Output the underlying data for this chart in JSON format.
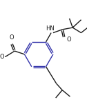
{
  "bg_color": "#ffffff",
  "line_color": "#1a1a1a",
  "ring_color": "#3333aa",
  "lw": 1.0,
  "figsize": [
    1.26,
    1.51
  ],
  "dpi": 100,
  "xlim": [
    0,
    126
  ],
  "ylim": [
    0,
    151
  ]
}
